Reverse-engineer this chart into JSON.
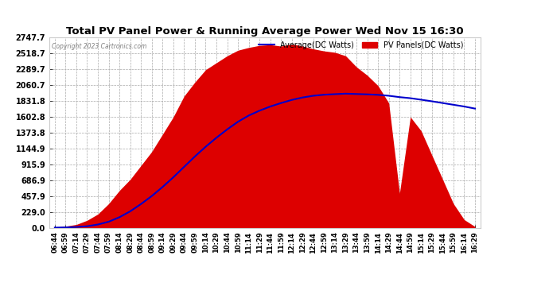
{
  "title": "Total PV Panel Power & Running Average Power Wed Nov 15 16:30",
  "copyright": "Copyright 2023 Cartronics.com",
  "legend_avg": "Average(DC Watts)",
  "legend_pv": "PV Panels(DC Watts)",
  "yticks": [
    0.0,
    229.0,
    457.9,
    686.9,
    915.9,
    1144.9,
    1373.8,
    1602.8,
    1831.8,
    2060.7,
    2289.7,
    2518.7,
    2747.7
  ],
  "ymax": 2747.7,
  "ymin": 0.0,
  "pv_color": "#dd0000",
  "avg_color": "#0000cc",
  "bg_color": "#ffffff",
  "grid_color": "#aaaaaa",
  "xtick_labels": [
    "06:44",
    "06:59",
    "07:14",
    "07:29",
    "07:44",
    "07:59",
    "08:14",
    "08:29",
    "08:44",
    "08:59",
    "09:14",
    "09:29",
    "09:44",
    "09:59",
    "10:14",
    "10:29",
    "10:44",
    "10:59",
    "11:14",
    "11:29",
    "11:44",
    "11:59",
    "12:14",
    "12:29",
    "12:44",
    "12:59",
    "13:14",
    "13:29",
    "13:44",
    "13:59",
    "14:14",
    "14:29",
    "14:44",
    "14:59",
    "15:14",
    "15:29",
    "15:44",
    "15:59",
    "16:14",
    "16:29"
  ],
  "pv_data_y": [
    10,
    20,
    40,
    80,
    180,
    320,
    520,
    750,
    950,
    1100,
    1350,
    1600,
    1900,
    2100,
    2280,
    2380,
    2480,
    2560,
    2600,
    2630,
    2640,
    2620,
    2650,
    2620,
    2580,
    2550,
    2530,
    2480,
    2320,
    2200,
    2050,
    1800,
    500,
    1600,
    1400,
    1050,
    700,
    350,
    120,
    20
  ],
  "avg_data_y": [
    5,
    8,
    14,
    25,
    50,
    90,
    155,
    240,
    345,
    460,
    590,
    730,
    880,
    1030,
    1170,
    1300,
    1420,
    1530,
    1620,
    1690,
    1750,
    1800,
    1845,
    1880,
    1905,
    1920,
    1928,
    1935,
    1930,
    1925,
    1918,
    1905,
    1885,
    1870,
    1848,
    1825,
    1800,
    1775,
    1750,
    1720
  ]
}
